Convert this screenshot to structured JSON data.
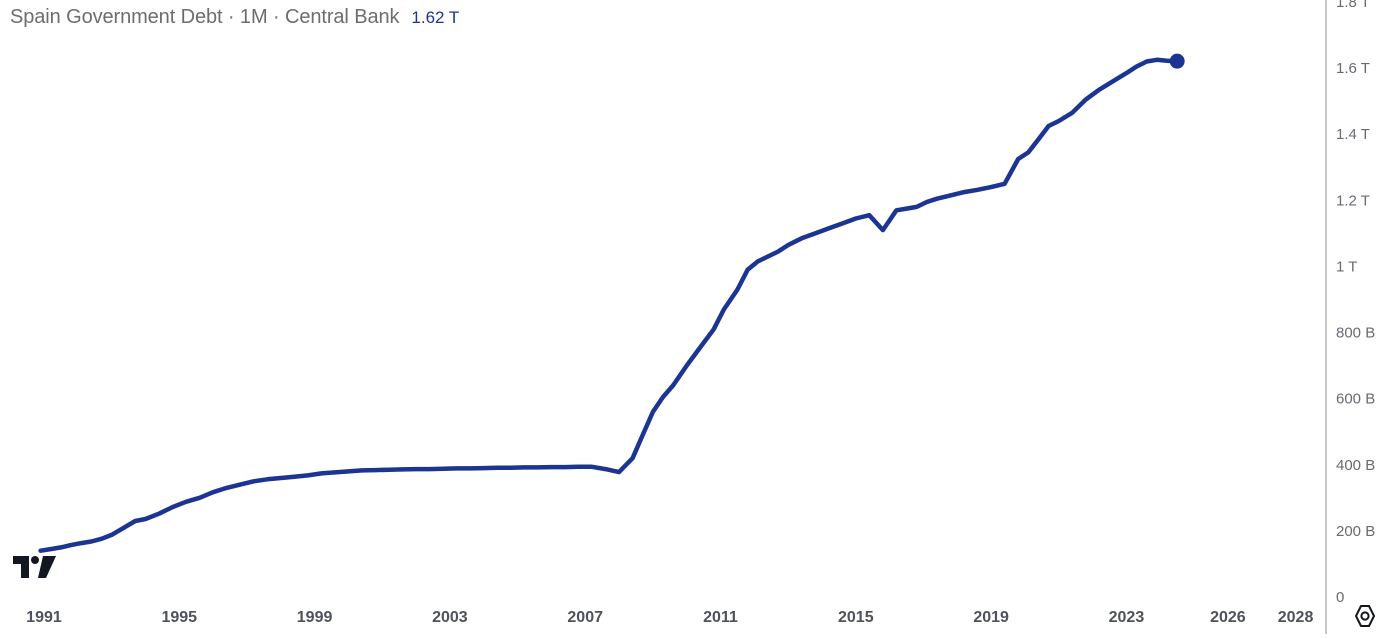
{
  "legend": {
    "title": "Spain Government Debt · 1M · Central Bank",
    "last_value": "1.62 T"
  },
  "colors": {
    "series": "#1c3593",
    "axis_line": "#8a8c94",
    "axis_text": "#686b75",
    "title_text": "#6a6d78",
    "background": "#ffffff"
  },
  "icons": {
    "logo": "tradingview-logo-icon",
    "settings": "settings-gear-icon"
  },
  "chart_data": {
    "type": "line",
    "title": "Spain Government Debt · 1M · Central Bank",
    "xlabel": "",
    "ylabel": "",
    "grid": false,
    "legend": "top-left",
    "xlim": [
      1989.7,
      2028.9
    ],
    "ylim": [
      0,
      1800
    ],
    "y_unit": "billions",
    "x_ticks": [
      "1991",
      "1995",
      "1999",
      "2003",
      "2007",
      "2011",
      "2015",
      "2019",
      "2023",
      "2026",
      "2028"
    ],
    "y_ticks": [
      {
        "value": 0,
        "label": "0"
      },
      {
        "value": 200,
        "label": "200 B"
      },
      {
        "value": 400,
        "label": "400 B"
      },
      {
        "value": 600,
        "label": "600 B"
      },
      {
        "value": 800,
        "label": "800 B"
      },
      {
        "value": 1000,
        "label": "1 T"
      },
      {
        "value": 1200,
        "label": "1.2 T"
      },
      {
        "value": 1400,
        "label": "1.4 T"
      },
      {
        "value": 1600,
        "label": "1.6 T"
      },
      {
        "value": 1800,
        "label": "1.8 T"
      }
    ],
    "series": [
      {
        "x": [
          1990.9,
          1991.2,
          1991.5,
          1991.8,
          1992.1,
          1992.4,
          1992.7,
          1993.0,
          1993.4,
          1993.7,
          1994.0,
          1994.4,
          1994.8,
          1995.2,
          1995.6,
          1996.0,
          1996.4,
          1996.8,
          1997.2,
          1997.6,
          1998.0,
          1998.4,
          1998.8,
          1999.2,
          1999.6,
          2000.0,
          2000.4,
          2000.8,
          2001.2,
          2001.6,
          2002.0,
          2002.4,
          2002.8,
          2003.2,
          2003.6,
          2004.0,
          2004.4,
          2004.8,
          2005.2,
          2005.6,
          2006.0,
          2006.4,
          2006.8,
          2007.2,
          2007.6,
          2008.0,
          2008.4,
          2008.7,
          2009.0,
          2009.3,
          2009.6,
          2010.0,
          2010.4,
          2010.8,
          2011.1,
          2011.5,
          2011.8,
          2012.1,
          2012.4,
          2012.7,
          2013.0,
          2013.4,
          2013.8,
          2014.2,
          2014.6,
          2015.0,
          2015.4,
          2015.8,
          2016.2,
          2016.5,
          2016.8,
          2017.1,
          2017.4,
          2017.8,
          2018.2,
          2018.6,
          2019.0,
          2019.4,
          2019.8,
          2020.1,
          2020.4,
          2020.7,
          2021.0,
          2021.4,
          2021.8,
          2022.2,
          2022.6,
          2023.0,
          2023.3,
          2023.6,
          2023.9,
          2024.2,
          2024.5
        ],
        "values": [
          140,
          145,
          150,
          157,
          163,
          168,
          176,
          188,
          212,
          230,
          236,
          252,
          272,
          288,
          300,
          317,
          330,
          340,
          350,
          356,
          360,
          364,
          368,
          374,
          377,
          380,
          383,
          384,
          385,
          386,
          387,
          387,
          388,
          389,
          389,
          390,
          391,
          391,
          392,
          392,
          393,
          393,
          394,
          394,
          387,
          378,
          420,
          490,
          560,
          605,
          640,
          700,
          755,
          810,
          870,
          930,
          990,
          1015,
          1030,
          1045,
          1065,
          1085,
          1100,
          1115,
          1130,
          1145,
          1155,
          1110,
          1170,
          1175,
          1180,
          1195,
          1205,
          1215,
          1225,
          1232,
          1240,
          1250,
          1325,
          1345,
          1385,
          1425,
          1440,
          1465,
          1505,
          1535,
          1560,
          1585,
          1605,
          1620,
          1625,
          1622,
          1621
        ]
      }
    ]
  }
}
